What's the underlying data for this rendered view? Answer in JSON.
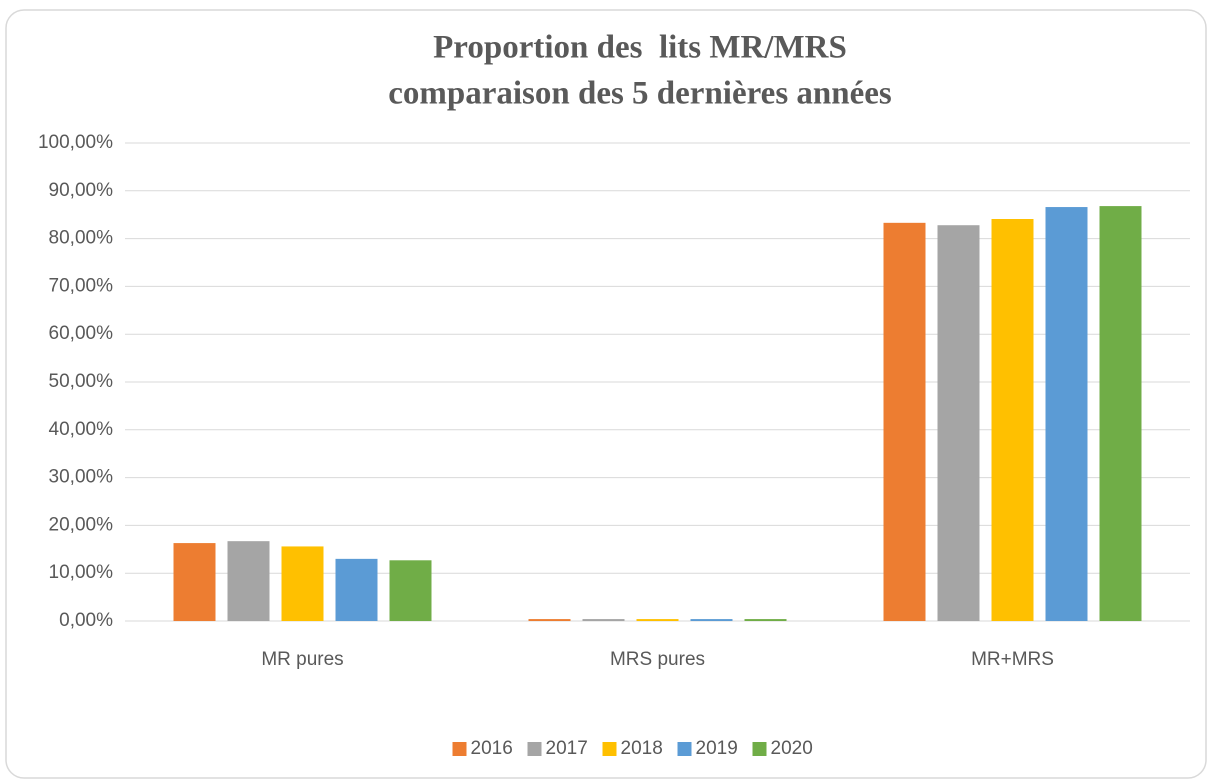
{
  "chart_data": {
    "type": "bar",
    "title": [
      "Proportion des  lits MR/MRS",
      "comparaison des 5 dernières années"
    ],
    "categories": [
      "MR pures",
      "MRS pures",
      "MR+MRS"
    ],
    "series": [
      {
        "name": "2016",
        "color": "#ed7d31",
        "values": [
          16.3,
          0.4,
          83.3
        ]
      },
      {
        "name": "2017",
        "color": "#a5a5a5",
        "values": [
          16.7,
          0.4,
          82.8
        ]
      },
      {
        "name": "2018",
        "color": "#ffc000",
        "values": [
          15.6,
          0.4,
          84.1
        ]
      },
      {
        "name": "2019",
        "color": "#5b9bd5",
        "values": [
          13.0,
          0.4,
          86.6
        ]
      },
      {
        "name": "2020",
        "color": "#70ad47",
        "values": [
          12.7,
          0.4,
          86.8
        ]
      }
    ],
    "ylim": [
      0,
      100
    ],
    "yticks": [
      {
        "value": 0,
        "label": "0,00%"
      },
      {
        "value": 10,
        "label": "10,00%"
      },
      {
        "value": 20,
        "label": "20,00%"
      },
      {
        "value": 30,
        "label": "30,00%"
      },
      {
        "value": 40,
        "label": "40,00%"
      },
      {
        "value": 50,
        "label": "50,00%"
      },
      {
        "value": 60,
        "label": "60,00%"
      },
      {
        "value": 70,
        "label": "70,00%"
      },
      {
        "value": 80,
        "label": "80,00%"
      },
      {
        "value": 90,
        "label": "90,00%"
      },
      {
        "value": 100,
        "label": "100,00%"
      }
    ],
    "grid": true,
    "legend": "bottom"
  }
}
